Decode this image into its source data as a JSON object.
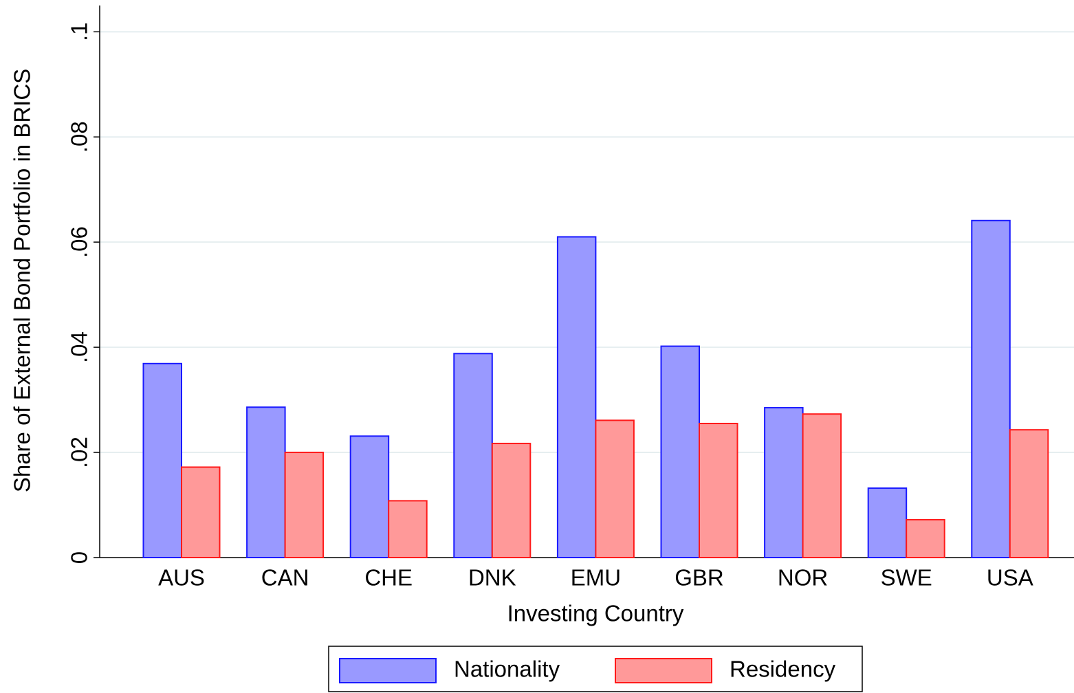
{
  "chart_data": {
    "type": "bar",
    "x_label": "Investing Country",
    "y_label": "Share of External Bond Portfolio in BRICS",
    "categories": [
      "AUS",
      "CAN",
      "CHE",
      "DNK",
      "EMU",
      "GBR",
      "NOR",
      "SWE",
      "USA"
    ],
    "series": [
      {
        "name": "Nationality",
        "color": "#9999ff",
        "edge_color": "#1a1aff",
        "values": [
          0.0369,
          0.0286,
          0.0231,
          0.0388,
          0.061,
          0.0402,
          0.0285,
          0.0132,
          0.0641
        ]
      },
      {
        "name": "Residency",
        "color": "#ff9999",
        "edge_color": "#ff1a1a",
        "values": [
          0.0172,
          0.02,
          0.0108,
          0.0217,
          0.0261,
          0.0255,
          0.0273,
          0.0072,
          0.0243
        ]
      }
    ],
    "ylim": [
      0,
      0.105
    ],
    "yticks": [
      0,
      {
        "value": 0.02,
        "label": ".02"
      },
      {
        "value": 0.04,
        "label": ".04"
      },
      {
        "value": 0.06,
        "label": ".06"
      },
      {
        "value": 0.08,
        "label": ".08"
      },
      {
        "value": 0.1,
        "label": ".1"
      }
    ],
    "grid": true,
    "legend": "bottom"
  }
}
